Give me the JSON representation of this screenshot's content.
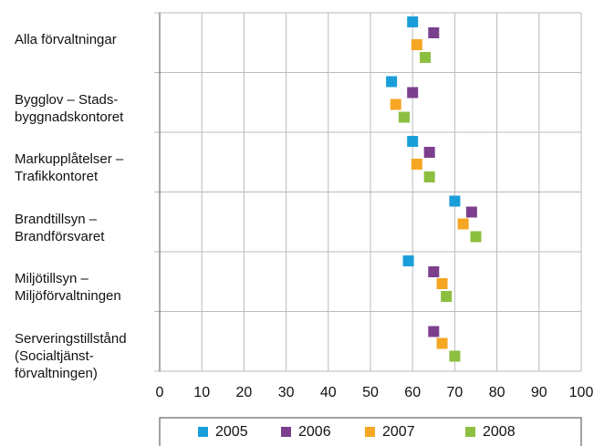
{
  "chart_data": {
    "type": "dot",
    "categories": [
      "Alla förvaltningar",
      "Bygglov – Stads-\nbyggnadskontoret",
      "Markupplåtelser –\nTrafikkontoret",
      "Brandtillsyn –\nBrandförsvaret",
      "Miljötillsyn –\nMiljöförvaltningen",
      "Serveringstillstånd\n(Socialtjänst-\nförvaltningen)"
    ],
    "series": [
      {
        "name": "2005",
        "color": "#1a9ed9",
        "values": [
          60,
          55,
          60,
          70,
          59,
          null
        ]
      },
      {
        "name": "2006",
        "color": "#7b3f8e",
        "values": [
          65,
          60,
          64,
          74,
          65,
          65
        ]
      },
      {
        "name": "2007",
        "color": "#f5a623",
        "values": [
          61,
          56,
          61,
          72,
          67,
          67
        ]
      },
      {
        "name": "2008",
        "color": "#8cbf3f",
        "values": [
          63,
          58,
          64,
          75,
          68,
          70
        ]
      }
    ],
    "xlim": [
      0,
      100
    ],
    "xticks": [
      0,
      10,
      20,
      30,
      40,
      50,
      60,
      70,
      80,
      90,
      100
    ],
    "grid": true
  }
}
